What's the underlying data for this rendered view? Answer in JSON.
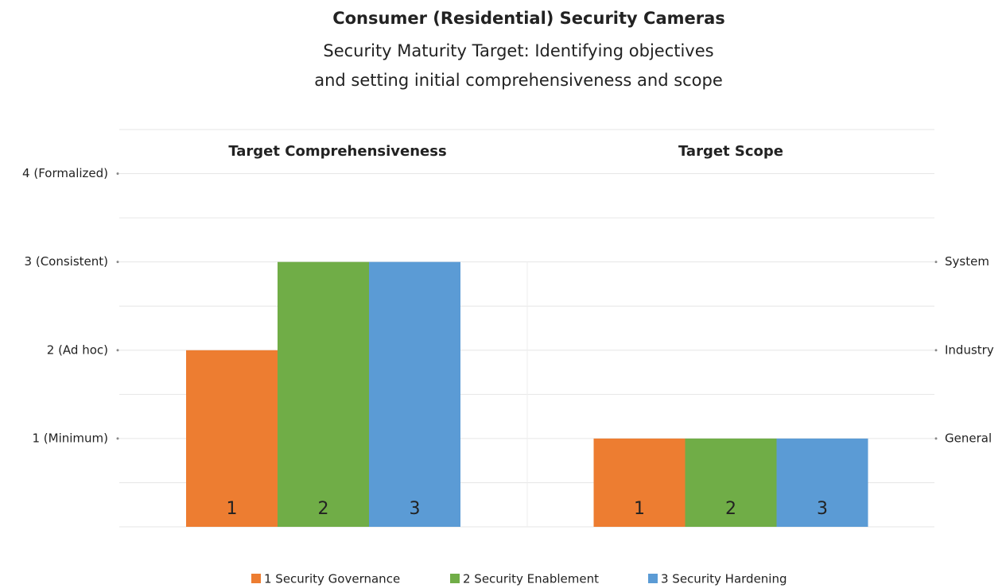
{
  "chart_data": {
    "type": "bar",
    "title": "Consumer (Residential) Security Cameras",
    "subtitle": [
      "Security Maturity Target: Identifying objectives",
      "and setting initial comprehensiveness and scope"
    ],
    "categories": [
      "Target Comprehensiveness",
      "Target Scope"
    ],
    "series": [
      {
        "name": "1 Security Governance",
        "label": "1",
        "color": "#ed7d31",
        "values": [
          2,
          1
        ]
      },
      {
        "name": "2 Security Enablement",
        "label": "2",
        "color": "#70ad47",
        "values": [
          3,
          1
        ]
      },
      {
        "name": "3 Security Hardening",
        "label": "3",
        "color": "#5b9bd5",
        "values": [
          3,
          1
        ]
      }
    ],
    "ylim": [
      0,
      4.5
    ],
    "yticks": [
      {
        "value": 1,
        "label": "1 (Minimum)"
      },
      {
        "value": 2,
        "label": "2 (Ad hoc)"
      },
      {
        "value": 3,
        "label": "3 (Consistent)"
      },
      {
        "value": 4,
        "label": "4 (Formalized)"
      }
    ],
    "y2lim": [
      0,
      4.5
    ],
    "y2ticks": [
      {
        "value": 1,
        "label": "General"
      },
      {
        "value": 2,
        "label": "Industry"
      },
      {
        "value": 3,
        "label": "System"
      }
    ],
    "minor_yticks": [
      0,
      0.5,
      1.5,
      2.5,
      3.5,
      4.5
    ],
    "grid": true,
    "legend": "bottom"
  }
}
